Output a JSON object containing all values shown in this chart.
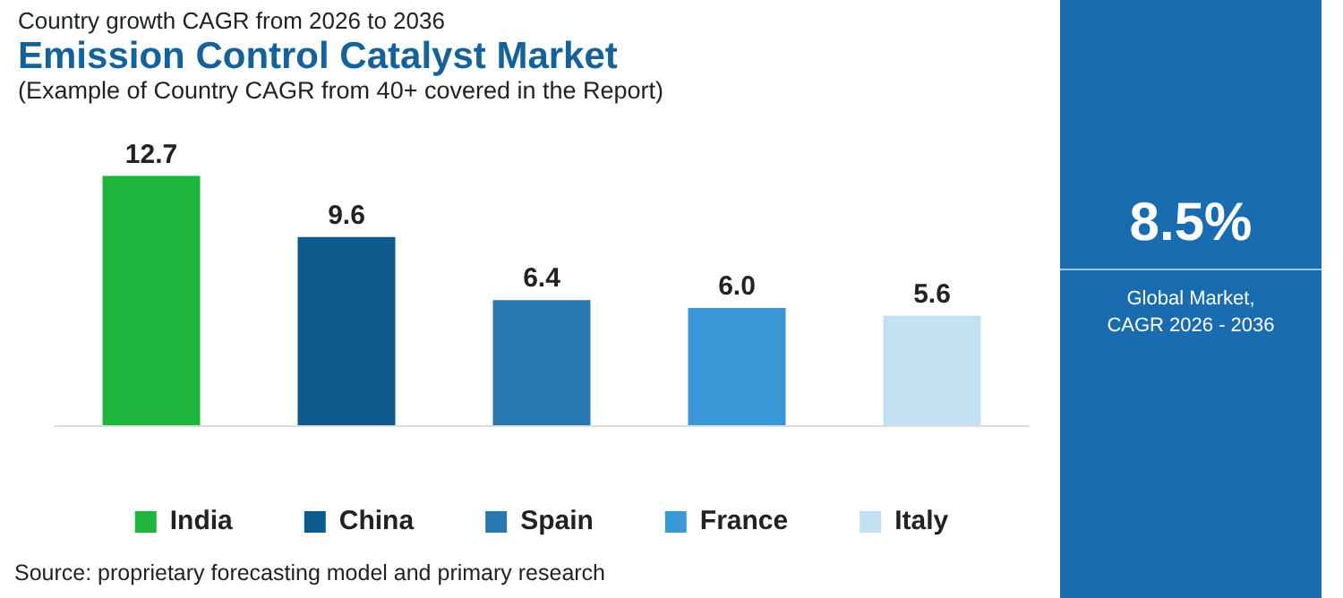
{
  "chart_data": {
    "type": "bar",
    "subtitle": "Country growth CAGR from 2026 to 2036",
    "title": "Emission Control Catalyst Market",
    "xlabel": "(Example of Country CAGR from 40+ covered in the Report)",
    "categories": [
      null,
      null,
      null,
      null,
      null
    ],
    "series": [
      {
        "name": "India",
        "color": "#1db53c",
        "values": [
          12.7,
          null,
          null,
          null,
          null
        ],
        "value_labels": [
          "12.7",
          null,
          null,
          null,
          null
        ]
      },
      {
        "name": "China",
        "color": "#0d5a8c",
        "values": [
          null,
          9.6,
          null,
          null,
          null
        ],
        "value_labels": [
          null,
          "9.6",
          null,
          null,
          null
        ]
      },
      {
        "name": "Spain",
        "color": "#2a78b0",
        "values": [
          null,
          null,
          6.4,
          null,
          null
        ],
        "value_labels": [
          null,
          null,
          "6.4",
          null,
          null
        ]
      },
      {
        "name": "France",
        "color": "#3a98d8",
        "values": [
          null,
          null,
          null,
          6.0,
          null
        ],
        "value_labels": [
          null,
          null,
          null,
          "6.0",
          null
        ]
      },
      {
        "name": "Italy",
        "color": "#c2e1f3",
        "values": [
          null,
          null,
          null,
          null,
          5.6
        ],
        "value_labels": [
          null,
          null,
          null,
          null,
          "5.6"
        ]
      }
    ],
    "stacked": true,
    "legend": "bottom",
    "tick_labels": false,
    "grid": false,
    "annotations": [
      "8.5%",
      "Global Market,\nCAGR 2026 - 2036",
      "Source: proprietary forecasting model and primary research"
    ]
  }
}
